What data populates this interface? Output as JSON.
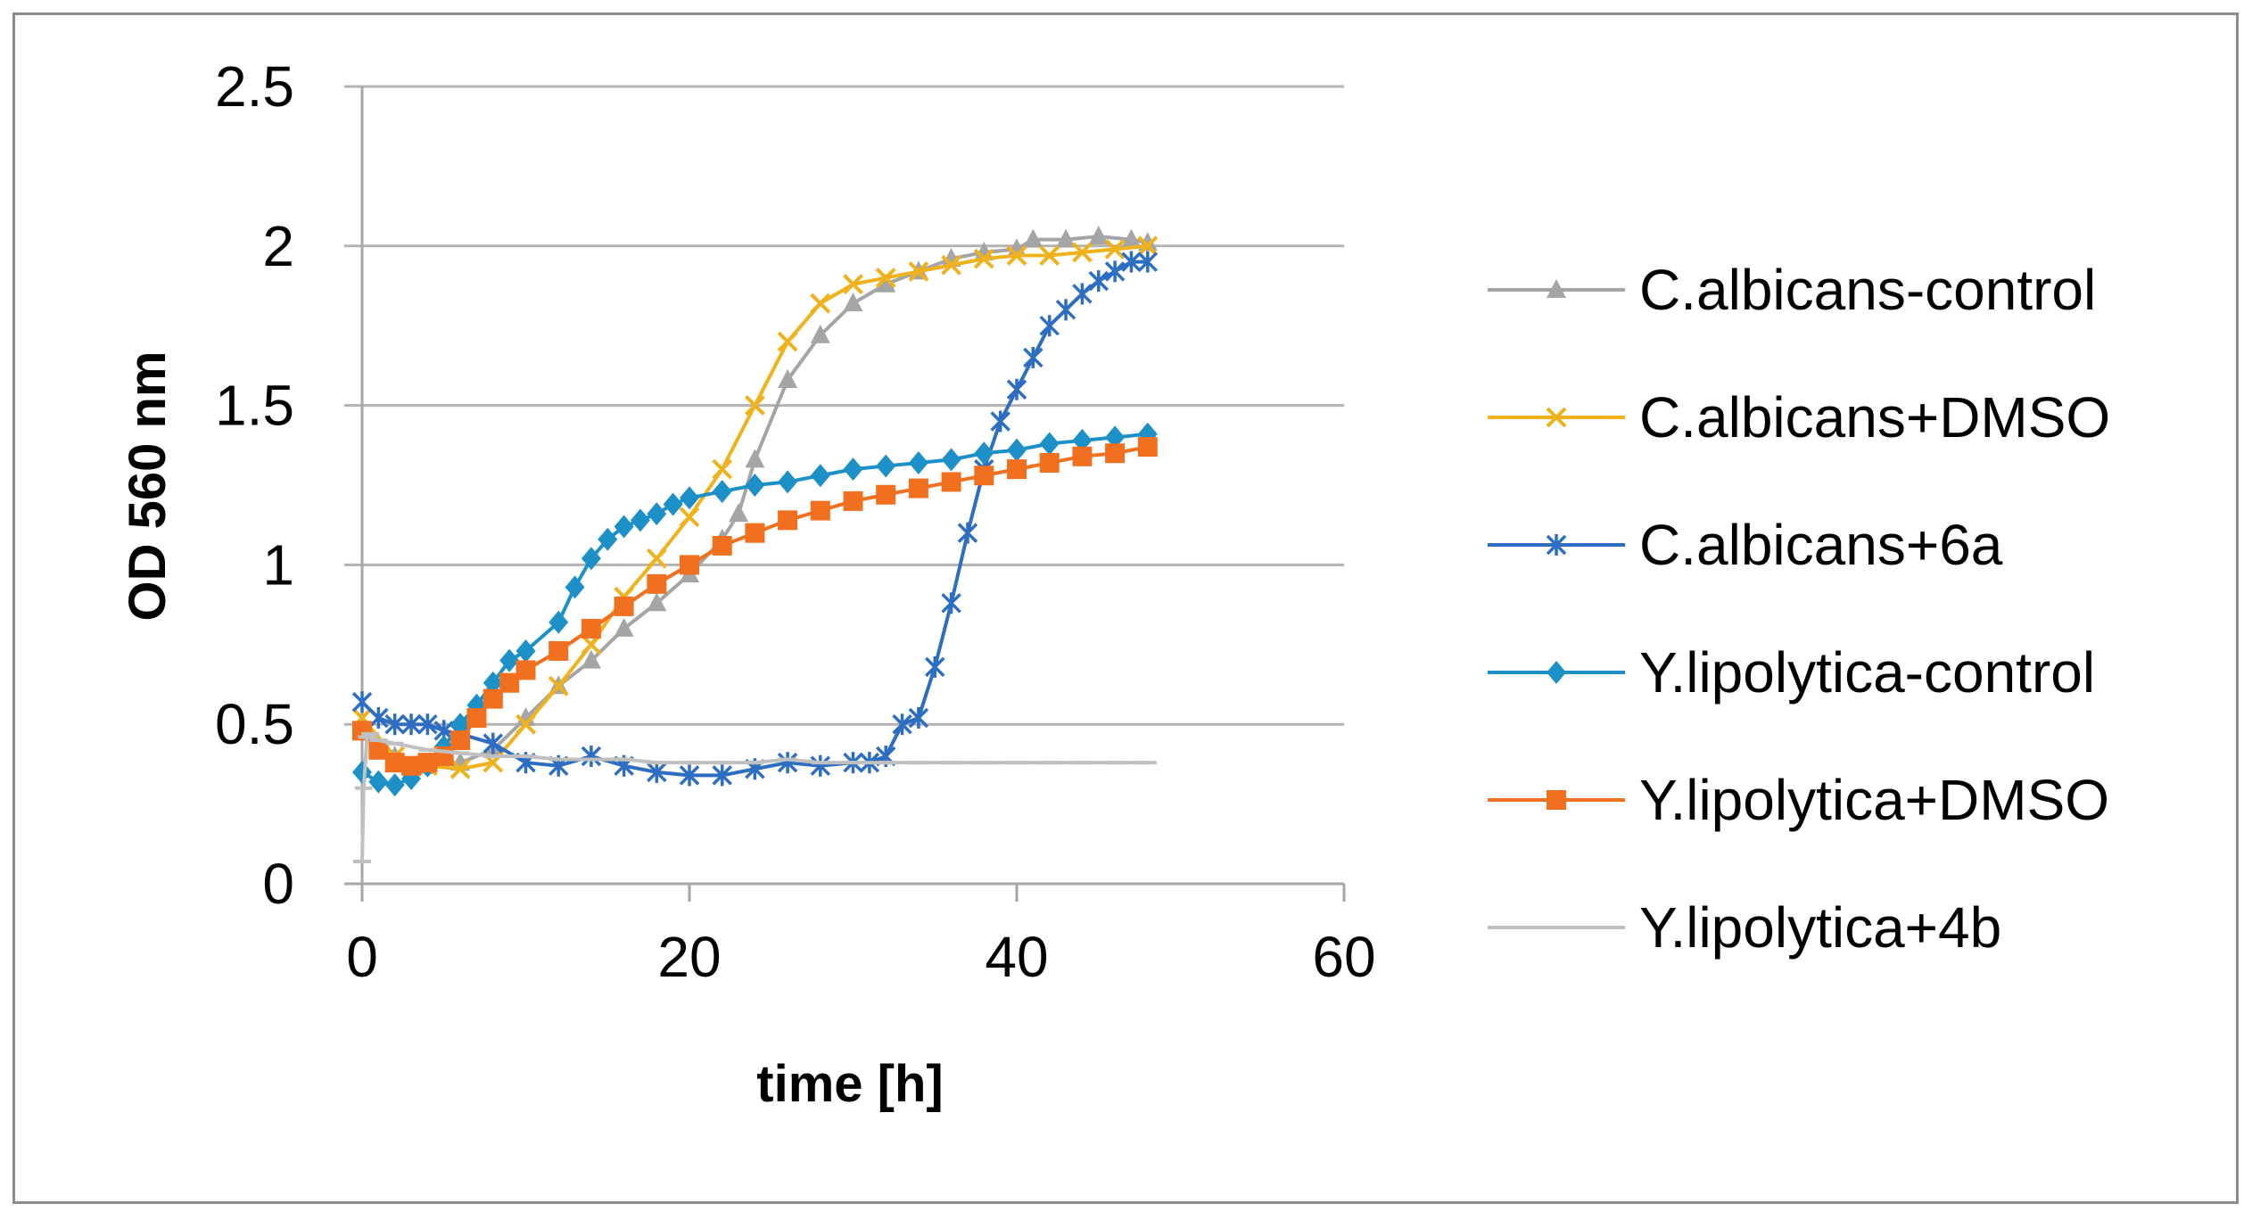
{
  "chart_data": {
    "type": "line",
    "title": "",
    "xlabel": "time [h]",
    "ylabel": "OD 560 nm",
    "xlim": [
      0,
      60
    ],
    "ylim": [
      0,
      2.5
    ],
    "xticks": [
      "0",
      "20",
      "40",
      "60"
    ],
    "yticks": [
      "0",
      "0.5",
      "1",
      "1.5",
      "2",
      "2.5"
    ],
    "xtick_values": [
      0,
      20,
      40,
      60
    ],
    "ytick_values": [
      0,
      0.5,
      1,
      1.5,
      2,
      2.5
    ],
    "grid": "horizontal",
    "legend_position": "right",
    "series": [
      {
        "name": "C.albicans-control",
        "color": "#a5a5a5",
        "marker": "triangle",
        "x": [
          0,
          2,
          4,
          6,
          8,
          10,
          12,
          14,
          16,
          18,
          20,
          22,
          23,
          24,
          26,
          28,
          30,
          32,
          34,
          36,
          38,
          40,
          41,
          43,
          45,
          47,
          48
        ],
        "y": [
          0.5,
          0.4,
          0.37,
          0.38,
          0.42,
          0.52,
          0.62,
          0.7,
          0.8,
          0.88,
          0.97,
          1.08,
          1.16,
          1.33,
          1.58,
          1.72,
          1.82,
          1.88,
          1.92,
          1.96,
          1.98,
          1.99,
          2.02,
          2.02,
          2.03,
          2.02,
          2.01
        ]
      },
      {
        "name": "C.albicans+DMSO",
        "color": "#f0b21c",
        "marker": "x",
        "x": [
          0,
          2,
          4,
          6,
          8,
          10,
          12,
          14,
          16,
          18,
          20,
          22,
          24,
          26,
          28,
          30,
          32,
          34,
          36,
          38,
          40,
          42,
          44,
          46,
          48
        ],
        "y": [
          0.52,
          0.4,
          0.37,
          0.36,
          0.38,
          0.5,
          0.62,
          0.75,
          0.9,
          1.02,
          1.15,
          1.3,
          1.5,
          1.7,
          1.82,
          1.88,
          1.9,
          1.92,
          1.94,
          1.96,
          1.97,
          1.97,
          1.98,
          1.99,
          2.0
        ]
      },
      {
        "name": "C.albicans+6a",
        "color": "#2e6ec2",
        "marker": "star",
        "x": [
          0,
          1,
          2,
          3,
          4,
          5,
          6,
          8,
          10,
          12,
          14,
          16,
          18,
          20,
          22,
          24,
          26,
          28,
          30,
          31,
          32,
          33,
          34,
          35,
          36,
          37,
          38,
          39,
          40,
          41,
          42,
          43,
          44,
          45,
          46,
          47,
          48
        ],
        "y": [
          0.57,
          0.52,
          0.5,
          0.5,
          0.5,
          0.48,
          0.47,
          0.44,
          0.38,
          0.37,
          0.4,
          0.37,
          0.35,
          0.34,
          0.34,
          0.36,
          0.38,
          0.37,
          0.38,
          0.38,
          0.4,
          0.5,
          0.52,
          0.68,
          0.88,
          1.1,
          1.3,
          1.45,
          1.55,
          1.65,
          1.75,
          1.8,
          1.85,
          1.89,
          1.92,
          1.95,
          1.95
        ]
      },
      {
        "name": "Y.lipolytica-control",
        "color": "#1e90c8",
        "marker": "diamond",
        "x": [
          0,
          1,
          2,
          3,
          4,
          5,
          6,
          7,
          8,
          9,
          10,
          12,
          13,
          14,
          15,
          16,
          17,
          18,
          19,
          20,
          22,
          24,
          26,
          28,
          30,
          32,
          34,
          36,
          38,
          40,
          42,
          44,
          46,
          48
        ],
        "y": [
          0.35,
          0.32,
          0.31,
          0.33,
          0.37,
          0.43,
          0.5,
          0.56,
          0.63,
          0.7,
          0.73,
          0.82,
          0.93,
          1.02,
          1.08,
          1.12,
          1.14,
          1.16,
          1.19,
          1.21,
          1.23,
          1.25,
          1.26,
          1.28,
          1.3,
          1.31,
          1.32,
          1.33,
          1.35,
          1.36,
          1.38,
          1.39,
          1.4,
          1.41
        ]
      },
      {
        "name": "Y.lipolytica+DMSO",
        "color": "#f07020",
        "marker": "square",
        "x": [
          0,
          1,
          2,
          3,
          4,
          5,
          6,
          7,
          8,
          9,
          10,
          12,
          14,
          16,
          18,
          20,
          22,
          24,
          26,
          28,
          30,
          32,
          34,
          36,
          38,
          40,
          42,
          44,
          46,
          48
        ],
        "y": [
          0.48,
          0.42,
          0.38,
          0.37,
          0.38,
          0.4,
          0.45,
          0.52,
          0.58,
          0.63,
          0.67,
          0.73,
          0.8,
          0.87,
          0.94,
          1.0,
          1.06,
          1.1,
          1.14,
          1.17,
          1.2,
          1.22,
          1.24,
          1.26,
          1.28,
          1.3,
          1.32,
          1.34,
          1.35,
          1.37
        ]
      },
      {
        "name": "Y.lipolytica+4b",
        "color": "#c0c0c0",
        "marker": "dash",
        "x": [
          0,
          0.1,
          0.3,
          0.5,
          1,
          2,
          4,
          6,
          8,
          10,
          12,
          14,
          16,
          18,
          20,
          22,
          24,
          26,
          28,
          30,
          32,
          34,
          36,
          38,
          40,
          42,
          44,
          46,
          48
        ],
        "y": [
          0.07,
          0.3,
          0.46,
          0.47,
          0.45,
          0.44,
          0.42,
          0.41,
          0.4,
          0.4,
          0.39,
          0.39,
          0.39,
          0.38,
          0.38,
          0.38,
          0.38,
          0.39,
          0.38,
          0.38,
          0.38,
          0.38,
          0.38,
          0.38,
          0.38,
          0.38,
          0.38,
          0.38,
          0.38
        ]
      }
    ]
  }
}
